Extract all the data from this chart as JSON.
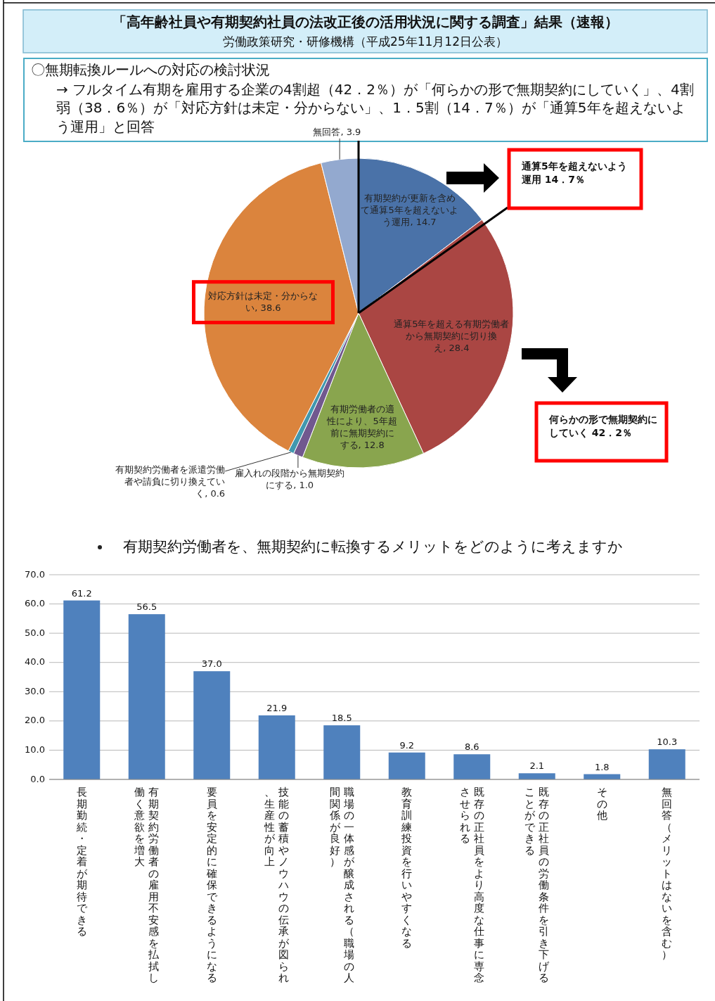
{
  "chart_data": [
    {
      "type": "pie",
      "title": "「高年齢社員や有期契約社員の法改正後の活用状況に関する調査」結果（速報）",
      "subtitle": "労働政策研究・研修機構（平成25年11月12日公表）",
      "annotations": [
        "〇無期転換ルールへの対応の検討状況",
        "→ フルタイム有期を雇用する企業の4割超（42．2％）が「何らかの形で無期契約にしていく」、4割弱（38．6％）が「対応方針は未定・分からない」、1．5割（14．7％）が「通算5年を超えないよう運用」と回答",
        "通算5年を超えないよう運用 14．7％",
        "何らかの形で無期契約にしていく 42．2％"
      ],
      "categories": [
        "有期契約が更新を含めて通算5年を超えないよう運用",
        "通算5年を超える有期労働者から無期契約に切り換え",
        "有期労働者の適性により、5年超前に無期契約にする",
        "雇入れの段階から無期契約にする",
        "有期契約労働者を派遣労働者や請負に切り換えていく",
        "対応方針は未定・分からない",
        "無回答"
      ],
      "values": [
        14.7,
        28.4,
        12.8,
        1.0,
        0.6,
        38.6,
        3.9
      ],
      "value_labels": [
        ", 14.7",
        ", 28.4",
        ", 12.8",
        ", 1.0",
        ", 0.6",
        ", 38.6",
        ", 3.9"
      ],
      "colors": [
        "#4a72a8",
        "#aa4643",
        "#89a54e",
        "#71588f",
        "#4198af",
        "#db843d",
        "#93a9cf"
      ]
    },
    {
      "type": "bar",
      "title": "有期契約労働者を、無期契約に転換するメリットをどのように考えますか",
      "categories": [
        "長期勤続・定着が期待できる",
        "有期契約労働者の雇用不安感を払拭し働く意欲を増大",
        "要員を安定的に確保できるようになる",
        "技能の蓄積やノウハウの伝承が図られ、生産性が向上",
        "職場の一体感が醸成される（職場の人間関係が良好）",
        "教育訓練投資を行いやすくなる",
        "既存の正社員をより高度な仕事に専念させられる",
        "既存の正社員の労働条件を引き下げることができる",
        "その他",
        "無回答（メリットはないを含む）"
      ],
      "values": [
        61.2,
        56.5,
        37.0,
        21.9,
        18.5,
        9.2,
        8.6,
        2.1,
        1.8,
        10.3
      ],
      "value_labels": [
        "61.2",
        "56.5",
        "37.0",
        "21.9",
        "18.5",
        "9.2",
        "8.6",
        "2.1",
        "1.8",
        "10.3"
      ],
      "color": "#4f81bd",
      "ylim": [
        0,
        70
      ],
      "yticks": [
        {
          "value": 0,
          "label": "0.0"
        },
        {
          "value": 10,
          "label": "10.0"
        },
        {
          "value": 20,
          "label": "20.0"
        },
        {
          "value": 30,
          "label": "30.0"
        },
        {
          "value": 40,
          "label": "40.0"
        },
        {
          "value": 50,
          "label": "50.0"
        },
        {
          "value": 60,
          "label": "60.0"
        },
        {
          "value": 70,
          "label": "70.0"
        }
      ],
      "grid": "y"
    }
  ]
}
